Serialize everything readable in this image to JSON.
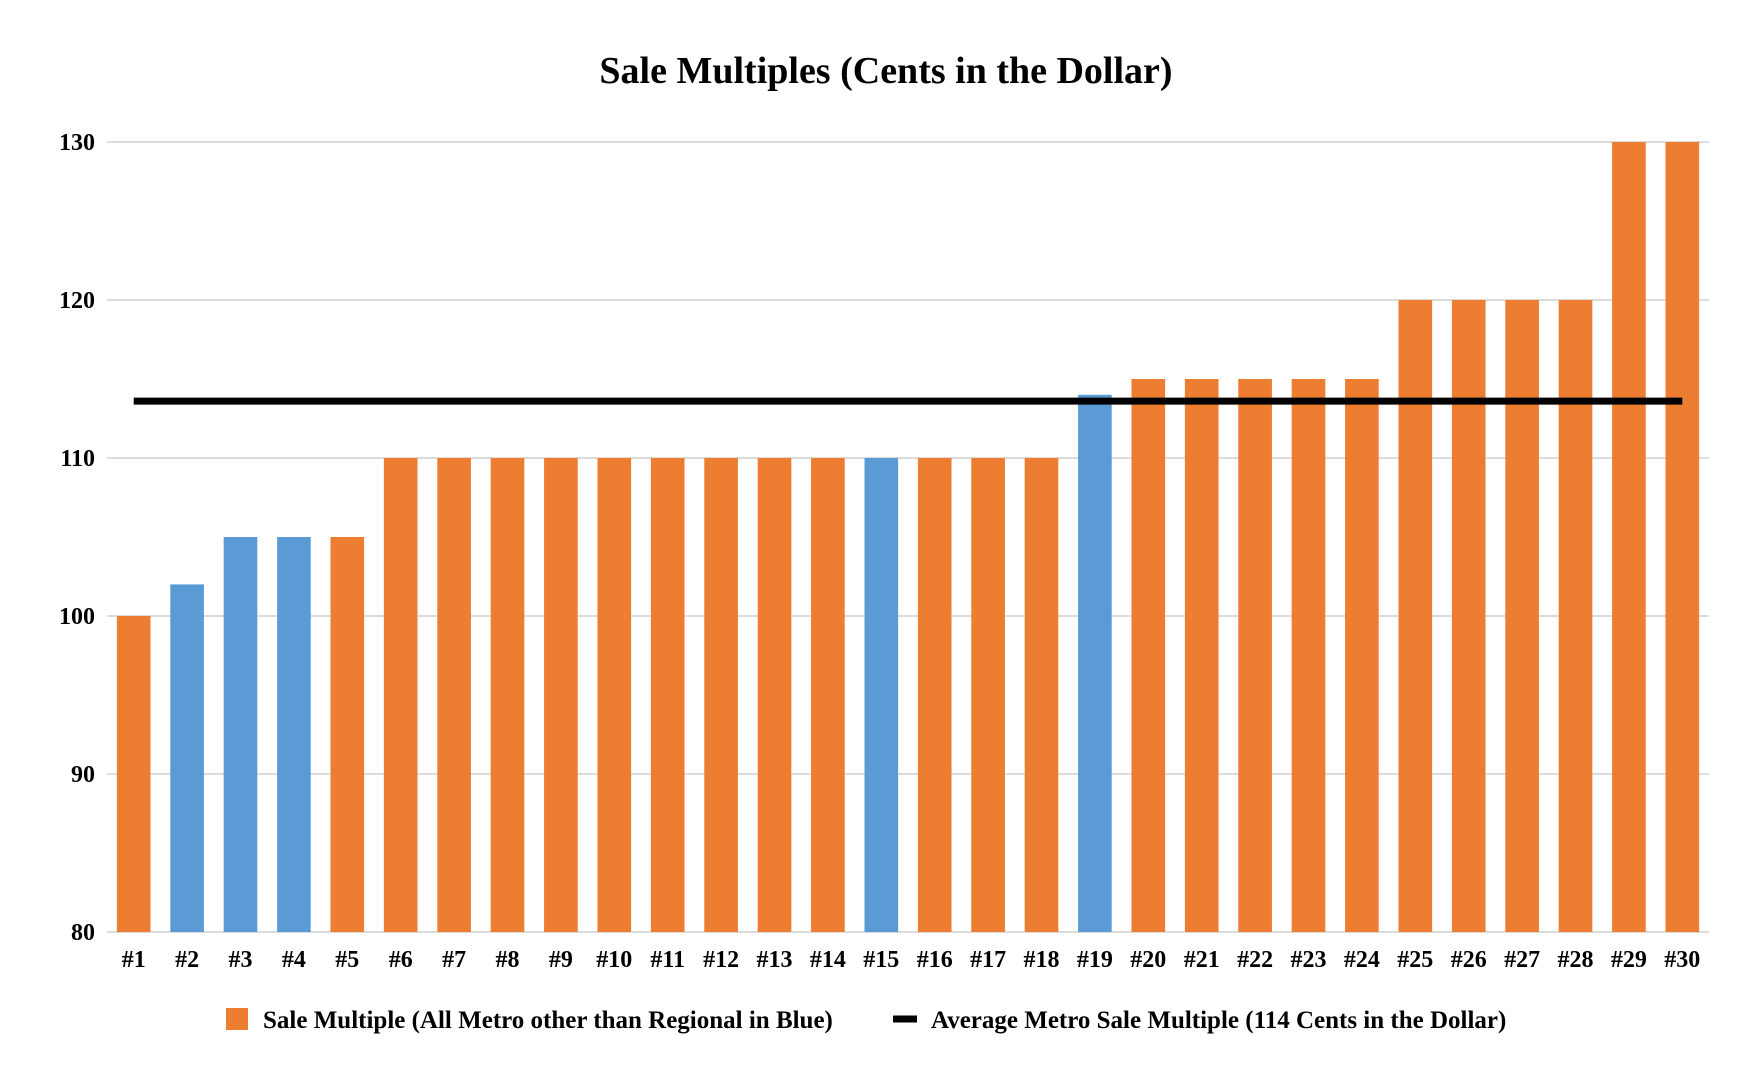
{
  "chart_data": {
    "type": "bar",
    "title": "Sale Multiples (Cents in the Dollar)",
    "xlabel": "",
    "ylabel": "",
    "ylim": [
      80,
      130
    ],
    "yticks": [
      80,
      90,
      100,
      110,
      120,
      130
    ],
    "grid": true,
    "legend_position": "bottom",
    "categories": [
      "#1",
      "#2",
      "#3",
      "#4",
      "#5",
      "#6",
      "#7",
      "#8",
      "#9",
      "#10",
      "#11",
      "#12",
      "#13",
      "#14",
      "#15",
      "#16",
      "#17",
      "#18",
      "#19",
      "#20",
      "#21",
      "#22",
      "#23",
      "#24",
      "#25",
      "#26",
      "#27",
      "#28",
      "#29",
      "#30"
    ],
    "values": [
      100,
      102,
      105,
      105,
      105,
      110,
      110,
      110,
      110,
      110,
      110,
      110,
      110,
      110,
      110,
      110,
      110,
      110,
      114,
      115,
      115,
      115,
      115,
      115,
      120,
      120,
      120,
      120,
      130,
      130
    ],
    "highlighted": [
      false,
      true,
      true,
      true,
      false,
      false,
      false,
      false,
      false,
      false,
      false,
      false,
      false,
      false,
      true,
      false,
      false,
      false,
      true,
      false,
      false,
      false,
      false,
      false,
      false,
      false,
      false,
      false,
      false,
      false
    ],
    "average_line": 113.6,
    "colors": {
      "metro": "#ED7D31",
      "regional": "#5B9BD5",
      "average": "#000000",
      "grid": "#D0D0D0"
    },
    "legend": [
      {
        "label": "Sale Multiple (All Metro other than Regional in Blue)",
        "marker": "square",
        "color": "#ED7D31"
      },
      {
        "label": "Average Metro Sale Multiple (114 Cents in the Dollar)",
        "marker": "line",
        "color": "#000000"
      }
    ]
  }
}
